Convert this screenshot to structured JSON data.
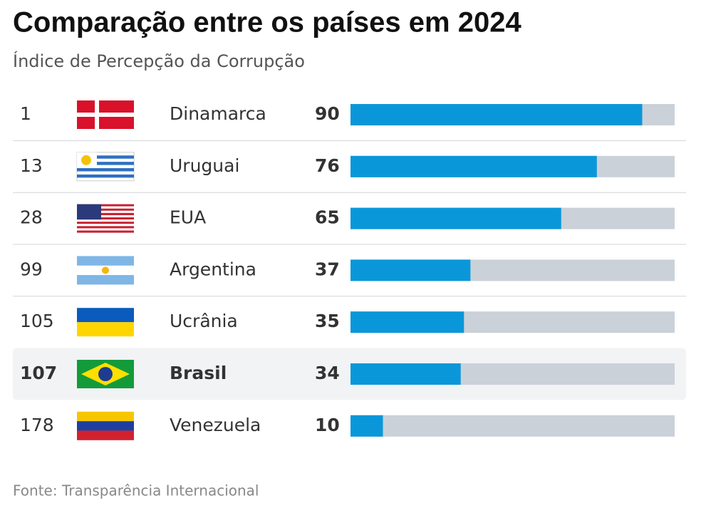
{
  "chart_data": {
    "type": "bar",
    "title": "Comparação entre os países em 2024",
    "subtitle": "Índice de Percepção da Corrupção",
    "categories": [
      "Dinamarca",
      "Uruguai",
      "EUA",
      "Argentina",
      "Ucrânia",
      "Brasil",
      "Venezuela"
    ],
    "ranks": [
      1,
      13,
      28,
      99,
      105,
      107,
      178
    ],
    "values": [
      90,
      76,
      65,
      37,
      35,
      34,
      10
    ],
    "xlim": [
      0,
      100
    ],
    "color": "#0a97d9",
    "track_color": "#cad1d9",
    "highlight": "Brasil",
    "source": "Fonte: Transparência Internacional"
  }
}
